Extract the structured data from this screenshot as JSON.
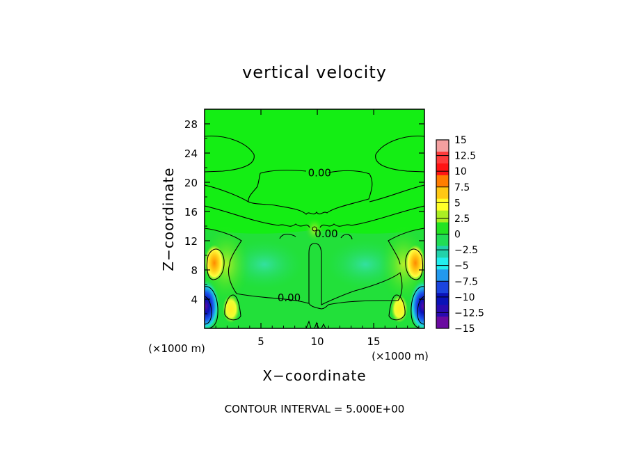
{
  "chart_data": {
    "type": "heatmap",
    "title": "vertical velocity",
    "xlabel": "X−coordinate",
    "ylabel": "Z−coordinate",
    "x_unit": "(×1000 m)",
    "z_unit": "(×1000 m)",
    "xlim": [
      0,
      19.5
    ],
    "ylim": [
      0,
      30
    ],
    "x_ticks": [
      "5",
      "10",
      "15"
    ],
    "x_tick_values": [
      5,
      10,
      15
    ],
    "y_ticks": [
      "4",
      "8",
      "12",
      "16",
      "20",
      "24",
      "28"
    ],
    "y_tick_values": [
      4,
      8,
      12,
      16,
      20,
      24,
      28
    ],
    "footer": "CONTOUR INTERVAL = 5.000E+00",
    "contour_labels": [
      {
        "text": "0.00",
        "x": 10.2,
        "z": 20.8
      },
      {
        "text": "0.00",
        "x": 10.8,
        "z": 12.5
      },
      {
        "text": "0.00",
        "x": 7.5,
        "z": 3.7
      }
    ],
    "colorbar": {
      "ticks": [
        "15",
        "12.5",
        "10",
        "7.5",
        "5",
        "2.5",
        "0",
        "−2.5",
        "−5",
        "−7.5",
        "−10",
        "−12.5",
        "−15"
      ],
      "tick_values": [
        15,
        12.5,
        10,
        7.5,
        5,
        2.5,
        0,
        -2.5,
        -5,
        -7.5,
        -10,
        -12.5,
        -15
      ],
      "colors": [
        "#f4a0a0",
        "#ff3c3c",
        "#ff1414",
        "#ff7d00",
        "#ffc814",
        "#ffff28",
        "#aaee22",
        "#22e322",
        "#22dd55",
        "#22d2aa",
        "#22eeee",
        "#2299ee",
        "#1a44dd",
        "#0a12b8",
        "#2a0ab0",
        "#6a0aa0"
      ]
    },
    "field_features": [
      {
        "kind": "updraft",
        "x": 0.9,
        "z": 8.8,
        "peak": 7.5
      },
      {
        "kind": "updraft",
        "x": 18.6,
        "z": 8.8,
        "peak": 7.5
      },
      {
        "kind": "updraft",
        "x": 2.3,
        "z": 2.8,
        "peak": 5
      },
      {
        "kind": "updraft",
        "x": 17.2,
        "z": 2.8,
        "peak": 5
      },
      {
        "kind": "downdraft",
        "x": 0.3,
        "z": 3.0,
        "peak": -15
      },
      {
        "kind": "downdraft",
        "x": 19.2,
        "z": 3.0,
        "peak": -15
      },
      {
        "kind": "weak-downdraft",
        "x": 5.5,
        "z": 9.0,
        "peak": -2.5
      },
      {
        "kind": "weak-downdraft",
        "x": 14.0,
        "z": 9.0,
        "peak": -2.5
      }
    ]
  }
}
